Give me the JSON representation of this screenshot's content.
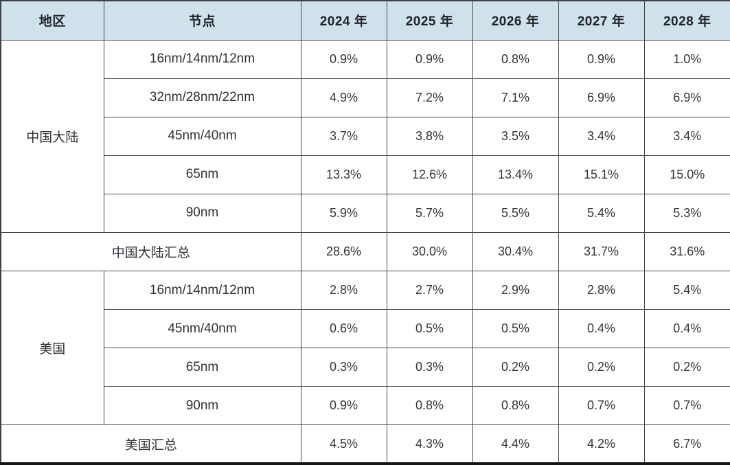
{
  "header": {
    "region_label": "地区",
    "node_label": "节点",
    "years": [
      "2024 年",
      "2025 年",
      "2026 年",
      "2027 年",
      "2028 年"
    ]
  },
  "sections": [
    {
      "region": "中国大陆",
      "rows": [
        {
          "node": "16nm/14nm/12nm",
          "values": [
            "0.9%",
            "0.9%",
            "0.8%",
            "0.9%",
            "1.0%"
          ]
        },
        {
          "node": "32nm/28nm/22nm",
          "values": [
            "4.9%",
            "7.2%",
            "7.1%",
            "6.9%",
            "6.9%"
          ]
        },
        {
          "node": "45nm/40nm",
          "values": [
            "3.7%",
            "3.8%",
            "3.5%",
            "3.4%",
            "3.4%"
          ]
        },
        {
          "node": "65nm",
          "values": [
            "13.3%",
            "12.6%",
            "13.4%",
            "15.1%",
            "15.0%"
          ]
        },
        {
          "node": "90nm",
          "values": [
            "5.9%",
            "5.7%",
            "5.5%",
            "5.4%",
            "5.3%"
          ]
        }
      ],
      "summary": {
        "label": "中国大陆汇总",
        "values": [
          "28.6%",
          "30.0%",
          "30.4%",
          "31.7%",
          "31.6%"
        ]
      }
    },
    {
      "region": "美国",
      "rows": [
        {
          "node": "16nm/14nm/12nm",
          "values": [
            "2.8%",
            "2.7%",
            "2.9%",
            "2.8%",
            "5.4%"
          ]
        },
        {
          "node": "45nm/40nm",
          "values": [
            "0.6%",
            "0.5%",
            "0.5%",
            "0.4%",
            "0.4%"
          ]
        },
        {
          "node": "65nm",
          "values": [
            "0.3%",
            "0.3%",
            "0.2%",
            "0.2%",
            "0.2%"
          ]
        },
        {
          "node": "90nm",
          "values": [
            "0.9%",
            "0.8%",
            "0.8%",
            "0.7%",
            "0.7%"
          ]
        }
      ],
      "summary": {
        "label": "美国汇总",
        "values": [
          "4.5%",
          "4.3%",
          "4.4%",
          "4.2%",
          "6.7%"
        ]
      }
    }
  ],
  "colors": {
    "header_background": "#cfe2ec",
    "grid_line": "#44474e",
    "outer_border": "#3c4048",
    "bottom_border": "#141517",
    "header_text": "#1f2329",
    "body_text": "#33363b"
  },
  "chart_data": {
    "type": "table",
    "columns": [
      "地区",
      "节点",
      "2024 年",
      "2025 年",
      "2026 年",
      "2027 年",
      "2028 年"
    ],
    "rows": [
      [
        "中国大陆",
        "16nm/14nm/12nm",
        "0.9%",
        "0.9%",
        "0.8%",
        "0.9%",
        "1.0%"
      ],
      [
        "中国大陆",
        "32nm/28nm/22nm",
        "4.9%",
        "7.2%",
        "7.1%",
        "6.9%",
        "6.9%"
      ],
      [
        "中国大陆",
        "45nm/40nm",
        "3.7%",
        "3.8%",
        "3.5%",
        "3.4%",
        "3.4%"
      ],
      [
        "中国大陆",
        "65nm",
        "13.3%",
        "12.6%",
        "13.4%",
        "15.1%",
        "15.0%"
      ],
      [
        "中国大陆",
        "90nm",
        "5.9%",
        "5.7%",
        "5.5%",
        "5.4%",
        "5.3%"
      ],
      [
        "中国大陆汇总",
        "",
        "28.6%",
        "30.0%",
        "30.4%",
        "31.7%",
        "31.6%"
      ],
      [
        "美国",
        "16nm/14nm/12nm",
        "2.8%",
        "2.7%",
        "2.9%",
        "2.8%",
        "5.4%"
      ],
      [
        "美国",
        "45nm/40nm",
        "0.6%",
        "0.5%",
        "0.5%",
        "0.4%",
        "0.4%"
      ],
      [
        "美国",
        "65nm",
        "0.3%",
        "0.3%",
        "0.2%",
        "0.2%",
        "0.2%"
      ],
      [
        "美国",
        "90nm",
        "0.9%",
        "0.8%",
        "0.8%",
        "0.7%",
        "0.7%"
      ],
      [
        "美国汇总",
        "",
        "4.5%",
        "4.3%",
        "4.4%",
        "4.2%",
        "6.7%"
      ]
    ]
  }
}
